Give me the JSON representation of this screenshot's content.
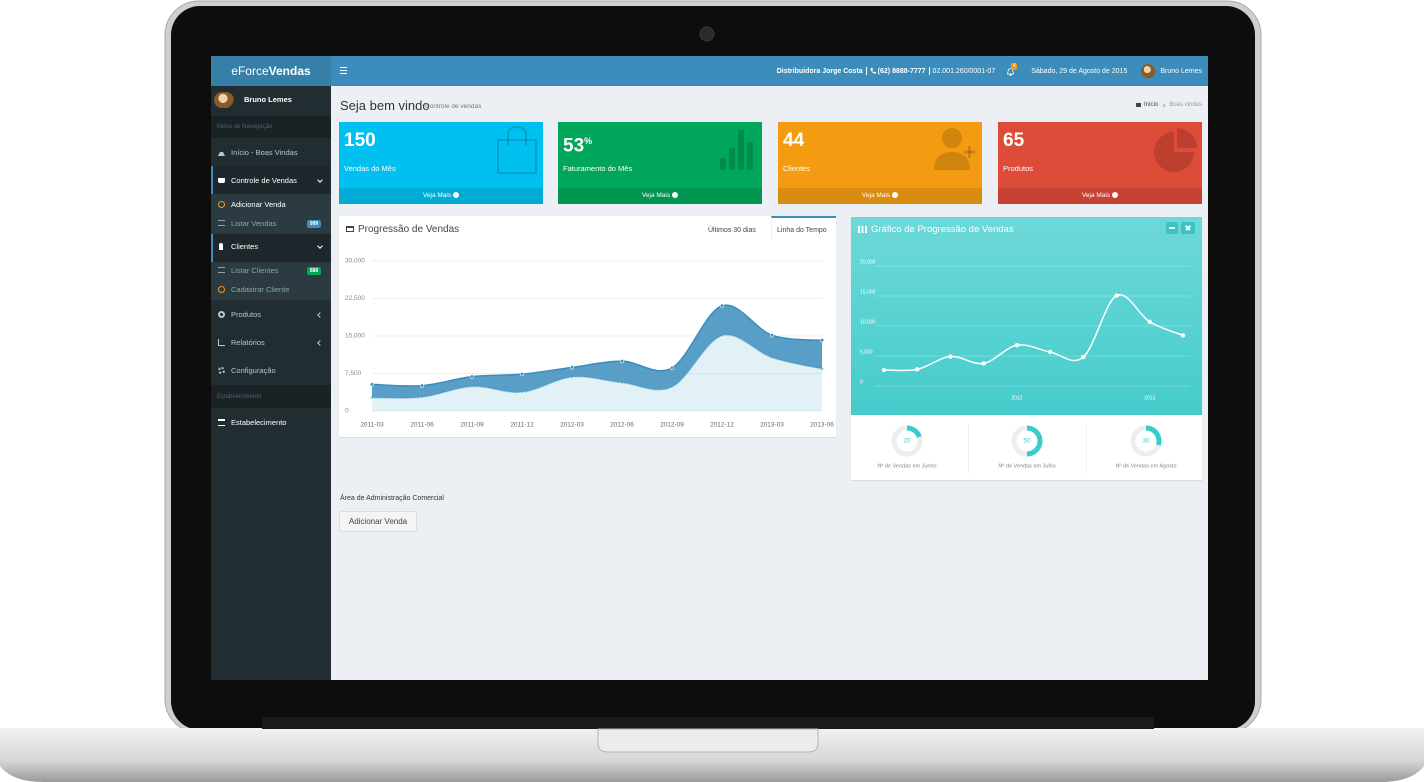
{
  "topbar": {
    "brand_light": "eForce",
    "brand_bold": "Vendas",
    "company": "Distribuidora Jorge Costa",
    "phone": "(62) 8888-7777",
    "cnpj": "02.001.260/0001-07",
    "notifications": 4,
    "date": "Sábado, 29 de Agosto de 2015",
    "user": "Bruno Lemes"
  },
  "sidebar": {
    "user": "Bruno Lemes",
    "menu_header": "Menu de Navegação",
    "items": [
      {
        "label": "Início - Boas Vindas"
      },
      {
        "label": "Controle de Vendas",
        "children": [
          {
            "label": "Adicionar Venda"
          },
          {
            "label": "Listar Vendas",
            "badge": 999
          }
        ]
      },
      {
        "label": "Clientes",
        "children": [
          {
            "label": "Listar Clientes",
            "badge": 888
          },
          {
            "label": "Cadastrar Cliente"
          }
        ]
      },
      {
        "label": "Produtos"
      },
      {
        "label": "Relatórios"
      },
      {
        "label": "Configuração"
      }
    ],
    "section_header": "Estabelecimento",
    "section_item": "Estabelecimento"
  },
  "content_header": {
    "title": "Seja bem vindo",
    "subtitle": "Controle de vendas",
    "breadcrumb": [
      "Início",
      "Boas vindas"
    ]
  },
  "stats": [
    {
      "value": 150,
      "label": "Vendas do Mês",
      "link": "Veja Mais"
    },
    {
      "value": 53,
      "unit": "%",
      "label": "Faturamento do Mês",
      "link": "Veja Mais"
    },
    {
      "value": 44,
      "label": "Clientes",
      "link": "Veja Mais"
    },
    {
      "value": 65,
      "label": "Produtos",
      "link": "Veja Mais"
    }
  ],
  "sales_chart": {
    "type": "area",
    "title": "Progressão de Vendas",
    "tabs": [
      "Últimos 30 dias",
      "Linha do Tempo"
    ],
    "stacked": true,
    "grid": true,
    "x": [
      "2011-03",
      "2011-06",
      "2011-09",
      "2011-12",
      "2012-03",
      "2012-06",
      "2012-09",
      "2012-12",
      "2013-03",
      "2013-06"
    ],
    "series": [
      {
        "color": "#a0d0e0",
        "values": [
          2666,
          2778,
          4912,
          3767,
          6810,
          5670,
          4820,
          15073,
          10687,
          8432
        ]
      },
      {
        "color": "#3c8dbc",
        "values": [
          2666,
          2294,
          1969,
          3597,
          1914,
          4293,
          3795,
          5967,
          4460,
          5713
        ]
      }
    ],
    "ylim": [
      0,
      30000
    ],
    "yticks": [
      0,
      {
        "value": 7500,
        "label": "7,500"
      },
      {
        "value": 15000,
        "label": "15,000"
      },
      {
        "value": 22500,
        "label": "22,500"
      },
      {
        "value": 30000,
        "label": "30,000"
      }
    ]
  },
  "line_chart": {
    "type": "line",
    "title": "Gráfico de Progressão de Vendas",
    "color": "#ffffff",
    "grid": true,
    "categories": [
      null,
      null,
      null,
      null,
      "2012",
      null,
      null,
      null,
      "2013",
      null
    ],
    "values": [
      2666,
      2778,
      4912,
      3767,
      6810,
      5670,
      4820,
      15073,
      10687,
      8432
    ],
    "ylim": [
      0,
      20000
    ],
    "yticks": [
      0,
      {
        "value": 5000,
        "label": "5,000"
      },
      {
        "value": 10000,
        "label": "10,000"
      },
      {
        "value": 15000,
        "label": "15,000"
      },
      {
        "value": 20000,
        "label": "20,000"
      }
    ]
  },
  "knobs": [
    {
      "value": 20,
      "lim": [
        0,
        100
      ],
      "label": "Nº de Vendas em Junho"
    },
    {
      "value": 50,
      "lim": [
        0,
        100
      ],
      "label": "Nº de Vendas em Julho"
    },
    {
      "value": 30,
      "lim": [
        0,
        100
      ],
      "label": "Nº de Vendas em Agosto"
    }
  ],
  "admin": {
    "text": "Área de Administração Comercial",
    "button": "Adicionar Venda"
  }
}
